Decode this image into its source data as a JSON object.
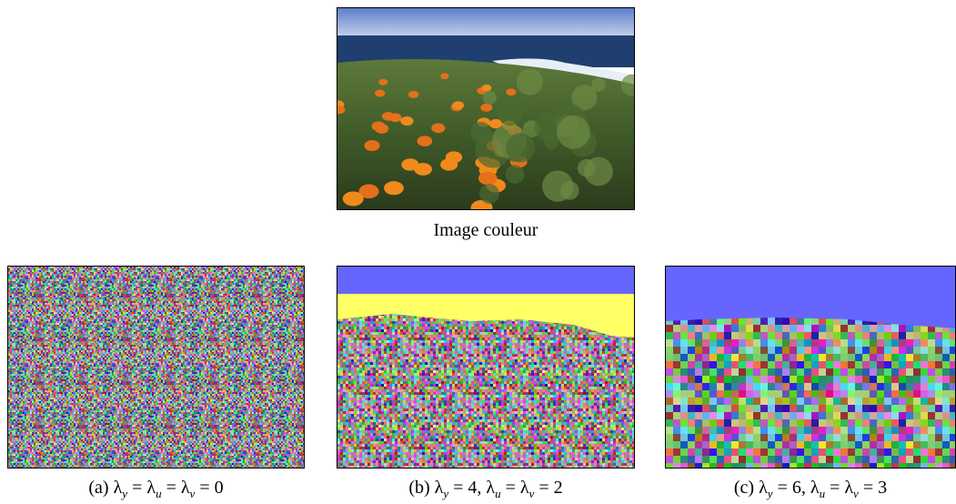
{
  "figure": {
    "top": {
      "caption": [
        {
          "text": "Image couleur"
        }
      ]
    },
    "panels": [
      {
        "caption": [
          {
            "text": "(a) λ"
          },
          {
            "sub": "y"
          },
          {
            "text": " = λ"
          },
          {
            "sub": "u"
          },
          {
            "text": " = λ"
          },
          {
            "sub": "v"
          },
          {
            "text": " = 0"
          }
        ]
      },
      {
        "caption": [
          {
            "text": "(b) λ"
          },
          {
            "sub": "y"
          },
          {
            "text": " = 4, λ"
          },
          {
            "sub": "u"
          },
          {
            "text": " = λ"
          },
          {
            "sub": "v"
          },
          {
            "text": " = 2"
          }
        ]
      },
      {
        "caption": [
          {
            "text": "(c) λ"
          },
          {
            "sub": "y"
          },
          {
            "text": " = 6, λ"
          },
          {
            "sub": "u"
          },
          {
            "text": " = λ"
          },
          {
            "sub": "v"
          },
          {
            "text": " = 3"
          }
        ]
      }
    ]
  }
}
